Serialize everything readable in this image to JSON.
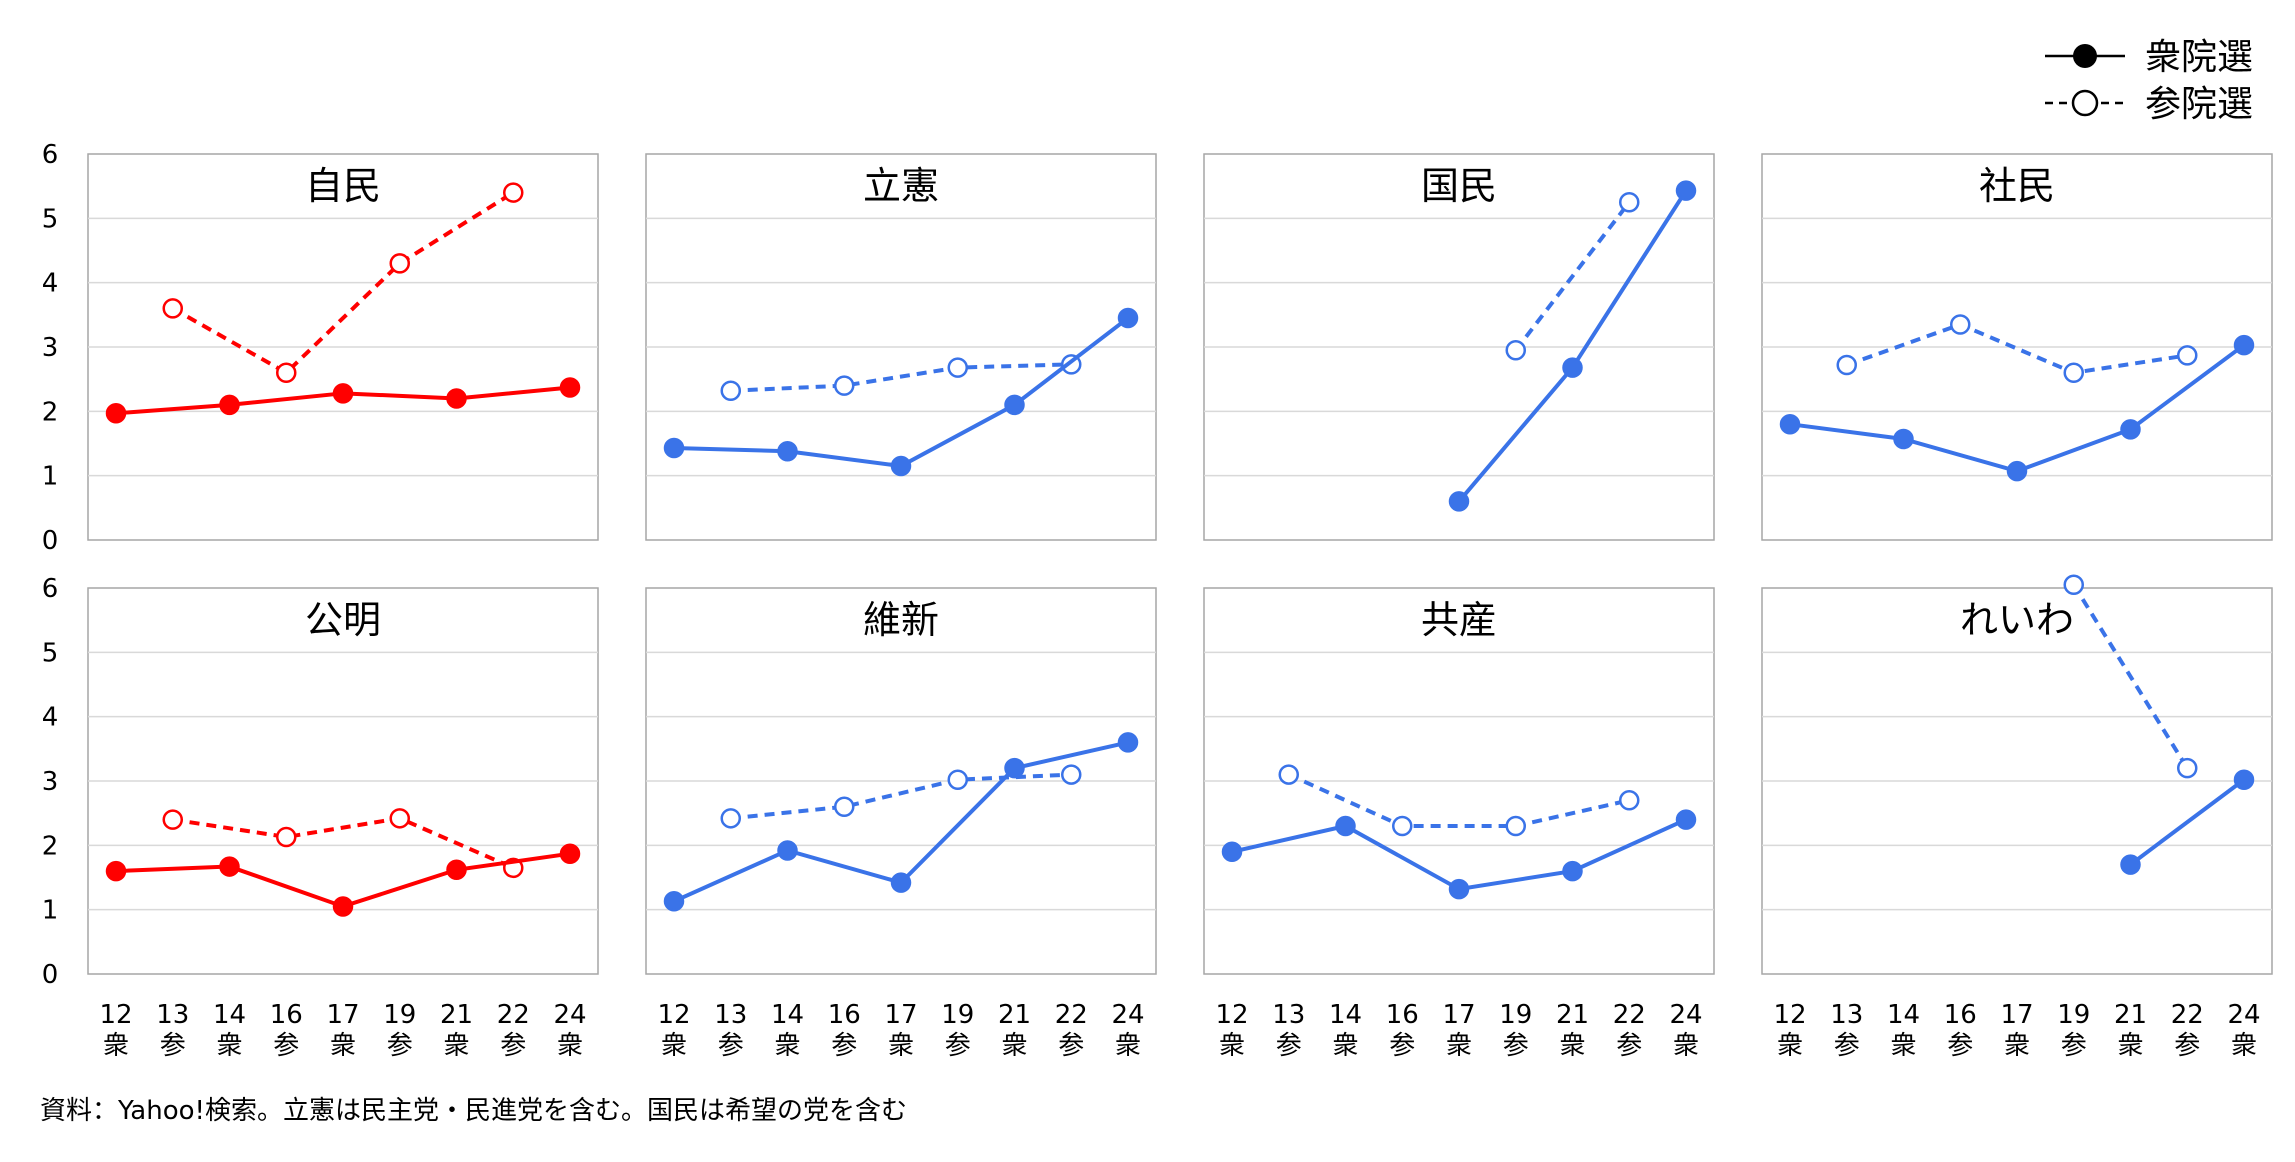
{
  "legend": {
    "lower_house": "衆院選",
    "upper_house": "参院選"
  },
  "source_note": "資料：Yahoo!検索。立憲は民主党・民進党を含む。国民は希望の党を含む",
  "colors": {
    "red": "#ff0000",
    "blue": "#3a73e8"
  },
  "chart_data": {
    "type": "line",
    "ylim": [
      0,
      6
    ],
    "yticks": [
      0,
      1,
      2,
      3,
      4,
      5,
      6
    ],
    "grid": true,
    "legend_position": "top-right",
    "categories": [
      {
        "num": "12",
        "kind": "衆"
      },
      {
        "num": "13",
        "kind": "参"
      },
      {
        "num": "14",
        "kind": "衆"
      },
      {
        "num": "16",
        "kind": "参"
      },
      {
        "num": "17",
        "kind": "衆"
      },
      {
        "num": "19",
        "kind": "参"
      },
      {
        "num": "21",
        "kind": "衆"
      },
      {
        "num": "22",
        "kind": "参"
      },
      {
        "num": "24",
        "kind": "衆"
      }
    ],
    "panels": [
      {
        "title": "自民",
        "color": "red",
        "lower_house": [
          1.97,
          null,
          2.1,
          null,
          2.28,
          null,
          2.2,
          null,
          2.37
        ],
        "upper_house": [
          null,
          3.6,
          null,
          2.6,
          null,
          4.3,
          null,
          5.4,
          null
        ]
      },
      {
        "title": "立憲",
        "color": "blue",
        "lower_house": [
          1.43,
          null,
          1.38,
          null,
          1.15,
          null,
          2.1,
          null,
          3.45
        ],
        "upper_house": [
          null,
          2.32,
          null,
          2.4,
          null,
          2.68,
          null,
          2.73,
          null
        ]
      },
      {
        "title": "国民",
        "color": "blue",
        "lower_house": [
          null,
          null,
          null,
          null,
          0.6,
          null,
          2.68,
          null,
          5.43
        ],
        "upper_house": [
          null,
          null,
          null,
          null,
          null,
          2.95,
          null,
          5.25,
          null
        ]
      },
      {
        "title": "社民",
        "color": "blue",
        "lower_house": [
          1.8,
          null,
          1.57,
          null,
          1.07,
          null,
          1.72,
          null,
          3.03
        ],
        "upper_house": [
          null,
          2.72,
          null,
          3.35,
          null,
          2.6,
          null,
          2.87,
          null
        ]
      },
      {
        "title": "公明",
        "color": "red",
        "lower_house": [
          1.6,
          null,
          1.67,
          null,
          1.05,
          null,
          1.62,
          null,
          1.87
        ],
        "upper_house": [
          null,
          2.4,
          null,
          2.13,
          null,
          2.42,
          null,
          1.65,
          null
        ]
      },
      {
        "title": "維新",
        "color": "blue",
        "lower_house": [
          1.13,
          null,
          1.92,
          null,
          1.42,
          null,
          3.2,
          null,
          3.6
        ],
        "upper_house": [
          null,
          2.42,
          null,
          2.6,
          null,
          3.02,
          null,
          3.1,
          null
        ]
      },
      {
        "title": "共産",
        "color": "blue",
        "lower_house": [
          1.9,
          null,
          2.3,
          null,
          1.32,
          null,
          1.6,
          null,
          2.4
        ],
        "upper_house": [
          null,
          3.1,
          null,
          2.3,
          null,
          2.3,
          null,
          2.7,
          null
        ]
      },
      {
        "title": "れいわ",
        "color": "blue",
        "lower_house": [
          null,
          null,
          null,
          null,
          null,
          null,
          1.7,
          null,
          3.02
        ],
        "upper_house": [
          null,
          null,
          null,
          null,
          null,
          6.05,
          null,
          3.2,
          null
        ]
      }
    ]
  }
}
